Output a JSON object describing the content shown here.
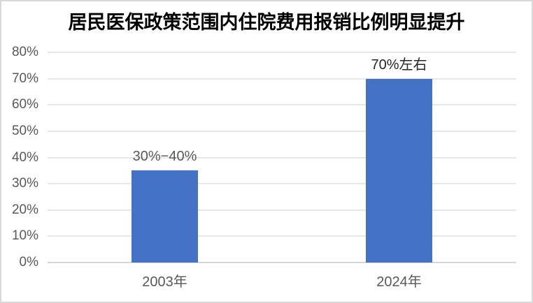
{
  "title": "居民医保政策范围内住院费用报销比例明显提升",
  "chart_data": {
    "type": "bar",
    "title": "居民医保政策范围内住院费用报销比例明显提升",
    "categories": [
      "2003年",
      "2024年"
    ],
    "values": [
      35,
      70
    ],
    "data_labels": [
      "30%−40%",
      "70%左右"
    ],
    "data_label_colors": [
      "#595959",
      "#262626"
    ],
    "xlabel": "",
    "ylabel": "",
    "ylim": [
      0,
      80
    ],
    "ytick_values": [
      0,
      10,
      20,
      30,
      40,
      50,
      60,
      70,
      80
    ],
    "ytick_labels": [
      "0%",
      "10%",
      "20%",
      "30%",
      "40%",
      "50%",
      "60%",
      "70%",
      "80%"
    ],
    "grid": true,
    "legend": false,
    "bar_color": "#4472C4",
    "axis_text_color": "#595959",
    "gridline_color": "#e7e7e7",
    "axis_line_color": "#d6d6d6",
    "title_color": "#000000",
    "background_color": "#ffffff",
    "border_color": "#d9d9d9"
  }
}
